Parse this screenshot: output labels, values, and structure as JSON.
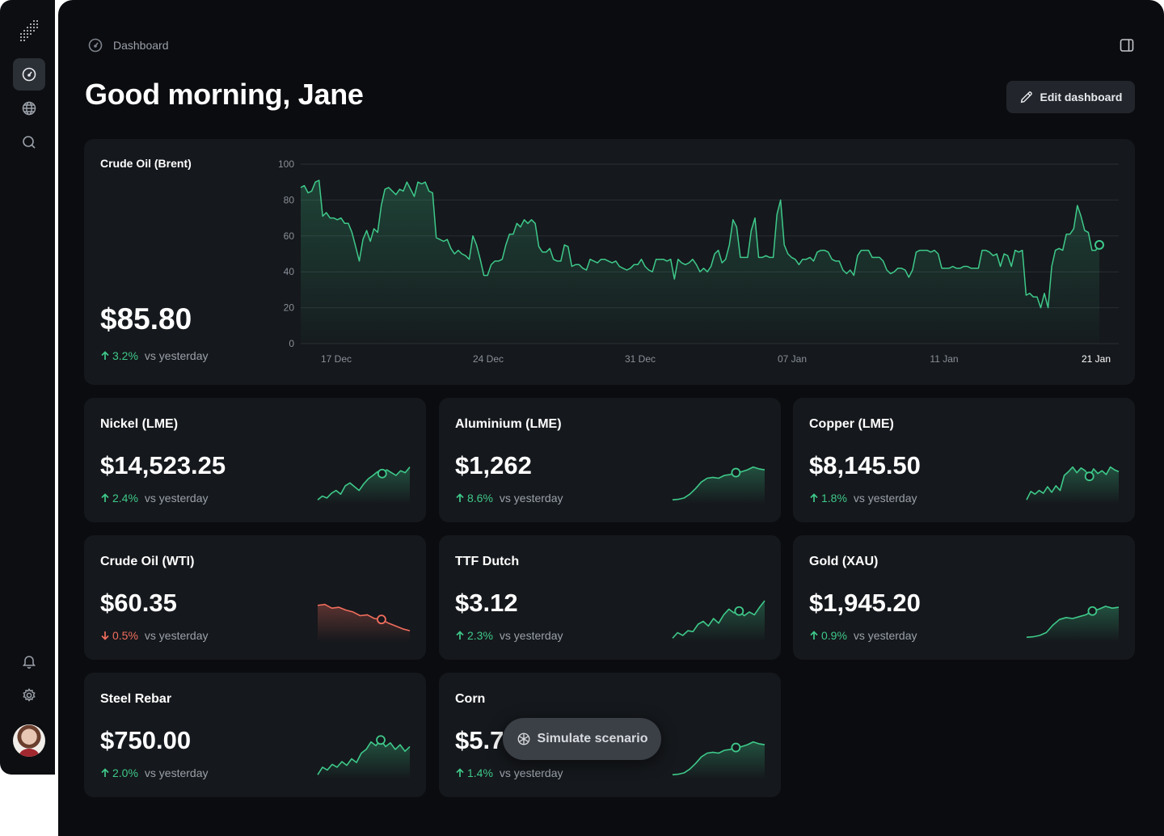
{
  "breadcrumb": {
    "label": "Dashboard"
  },
  "header": {
    "greeting": "Good morning, Jane",
    "edit_label": "Edit dashboard"
  },
  "colors": {
    "up": "#3ec98a",
    "down": "#f16d5d",
    "background": "#0b0c0f",
    "card": "#15181c"
  },
  "hero": {
    "title": "Crude Oil (Brent)",
    "price": "$85.80",
    "change": "3.2%",
    "direction": "up",
    "vs_label": "vs yesterday"
  },
  "chart_data": {
    "type": "area",
    "title": "Crude Oil (Brent)",
    "xlabel": "",
    "ylabel": "",
    "ylim": [
      0,
      100
    ],
    "yticks": [
      0,
      20,
      40,
      60,
      80,
      100
    ],
    "xtick_labels": [
      "17 Dec",
      "24 Dec",
      "31 Dec",
      "07 Jan",
      "11 Jan",
      "21 Jan"
    ],
    "grid": true,
    "values": [
      87,
      88,
      84,
      85,
      90,
      91,
      71,
      73,
      70,
      70,
      69,
      70,
      67,
      67,
      62,
      54,
      46,
      58,
      63,
      57,
      64,
      62,
      77,
      86,
      87,
      85,
      83,
      86,
      85,
      90,
      86,
      82,
      90,
      89,
      90,
      85,
      84,
      59,
      58,
      57,
      58,
      53,
      50,
      52,
      50,
      49,
      47,
      60,
      55,
      47,
      38,
      38,
      44,
      46,
      46,
      47,
      55,
      61,
      61,
      67,
      65,
      69,
      67,
      69,
      67,
      54,
      51,
      51,
      53,
      47,
      46,
      46,
      55,
      54,
      43,
      44,
      44,
      42,
      41,
      47,
      46,
      45,
      47,
      47,
      46,
      45,
      46,
      43,
      42,
      41,
      42,
      44,
      44,
      47,
      43,
      41,
      40,
      47,
      47,
      47,
      46,
      47,
      36,
      47,
      45,
      44,
      45,
      47,
      44,
      40,
      42,
      40,
      43,
      50,
      52,
      45,
      47,
      55,
      69,
      65,
      48,
      48,
      48,
      63,
      70,
      48,
      48,
      49,
      48,
      48,
      72,
      80,
      55,
      50,
      48,
      47,
      44,
      47,
      47,
      48,
      46,
      51,
      52,
      52,
      51,
      47,
      46,
      46,
      41,
      39,
      41,
      38,
      49,
      52,
      52,
      52,
      48,
      48,
      48,
      46,
      41,
      39,
      40,
      42,
      42,
      41,
      37,
      41,
      51,
      52,
      52,
      52,
      51,
      52,
      50,
      42,
      42,
      42,
      43,
      42,
      42,
      43,
      43,
      42,
      42,
      42,
      52,
      52,
      51,
      49,
      50,
      43,
      50,
      49,
      43,
      52,
      51,
      52,
      27,
      28,
      26,
      26,
      20,
      28,
      20,
      43,
      52,
      53,
      52,
      61,
      61,
      64,
      77,
      71,
      63,
      62,
      52,
      52,
      55
    ]
  },
  "cards": [
    {
      "title": "Nickel (LME)",
      "price": "$14,523.25",
      "change": "2.4%",
      "direction": "up",
      "vs_label": "vs yesterday",
      "spark": [
        10,
        18,
        14,
        24,
        30,
        22,
        40,
        46,
        38,
        30,
        44,
        55,
        62,
        70,
        66,
        74,
        68,
        62,
        72,
        68,
        80
      ]
    },
    {
      "title": "Aluminium (LME)",
      "price": "$1,262",
      "change": "8.6%",
      "direction": "up",
      "vs_label": "vs yesterday",
      "spark": [
        10,
        11,
        14,
        22,
        34,
        48,
        56,
        58,
        56,
        62,
        64,
        68,
        70,
        74,
        80,
        76,
        74
      ]
    },
    {
      "title": "Copper (LME)",
      "price": "$8,145.50",
      "change": "1.8%",
      "direction": "up",
      "vs_label": "vs yesterday",
      "spark": [
        10,
        28,
        22,
        30,
        24,
        38,
        26,
        40,
        30,
        62,
        70,
        80,
        68,
        78,
        72,
        60,
        76,
        66,
        72,
        64,
        80,
        74,
        70
      ]
    },
    {
      "title": "Crude Oil (WTI)",
      "price": "$60.35",
      "change": "0.5%",
      "direction": "down",
      "vs_label": "vs yesterday",
      "spark": [
        78,
        80,
        72,
        74,
        68,
        64,
        56,
        58,
        50,
        48,
        40,
        34,
        28,
        24
      ]
    },
    {
      "title": "TTF Dutch",
      "price": "$3.12",
      "change": "2.3%",
      "direction": "up",
      "vs_label": "vs yesterday",
      "spark": [
        8,
        20,
        14,
        24,
        22,
        38,
        44,
        34,
        50,
        40,
        58,
        70,
        62,
        66,
        56,
        64,
        58,
        74,
        88
      ]
    },
    {
      "title": "Gold (XAU)",
      "price": "$1,945.20",
      "change": "0.9%",
      "direction": "up",
      "vs_label": "vs yesterday",
      "spark": [
        10,
        11,
        14,
        20,
        36,
        48,
        52,
        50,
        54,
        58,
        66,
        70,
        76,
        72,
        74
      ]
    },
    {
      "title": "Steel Rebar",
      "price": "$750.00",
      "change": "2.0%",
      "direction": "up",
      "vs_label": "vs yesterday",
      "spark": [
        10,
        26,
        20,
        32,
        26,
        38,
        30,
        44,
        36,
        56,
        64,
        80,
        72,
        84,
        70,
        78,
        64,
        74,
        60,
        70
      ]
    },
    {
      "title": "Corn",
      "price": "$5.7",
      "change": "1.4%",
      "direction": "up",
      "vs_label": "vs yesterday",
      "spark": [
        10,
        11,
        14,
        22,
        34,
        48,
        56,
        58,
        56,
        62,
        64,
        68,
        70,
        74,
        80,
        76,
        74
      ]
    }
  ],
  "simulate": {
    "label": "Simulate scenario"
  }
}
